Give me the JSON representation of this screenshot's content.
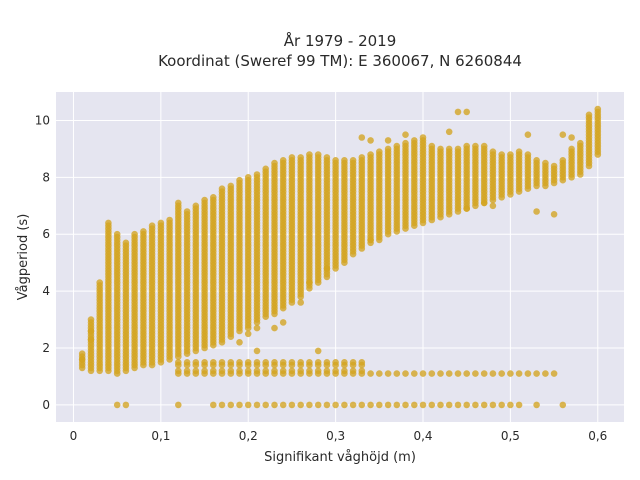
{
  "chart_data": {
    "type": "scatter",
    "title": "År 1979 - 2019",
    "subtitle": "Koordinat (Sweref 99 TM): E 360067, N 6260844",
    "xlabel": "Signifikant våghöjd (m)",
    "ylabel": "Vågperiod (s)",
    "xlim": [
      -0.02,
      0.63
    ],
    "ylim": [
      -0.6,
      11.0
    ],
    "x_ticks": [
      0,
      0.1,
      0.2,
      0.3,
      0.4,
      0.5,
      0.6
    ],
    "x_tick_labels": [
      "0",
      "0,1",
      "0,2",
      "0,3",
      "0,4",
      "0,5",
      "0,6"
    ],
    "y_ticks": [
      0,
      2,
      4,
      6,
      8,
      10
    ],
    "y_tick_labels": [
      "0",
      "2",
      "4",
      "6",
      "8",
      "10"
    ],
    "grid": true,
    "color": "#d4a420",
    "background": "#e5e5f0",
    "column_step": 0.01,
    "columns": [
      [
        0.01,
        1.3,
        1.8
      ],
      [
        0.02,
        1.2,
        3.0
      ],
      [
        0.03,
        1.2,
        4.3
      ],
      [
        0.04,
        1.2,
        6.4
      ],
      [
        0.05,
        1.1,
        6.0
      ],
      [
        0.06,
        1.2,
        5.7
      ],
      [
        0.07,
        1.3,
        6.0
      ],
      [
        0.08,
        1.4,
        6.1
      ],
      [
        0.09,
        1.4,
        6.3
      ],
      [
        0.1,
        1.5,
        6.4
      ],
      [
        0.11,
        1.6,
        6.5
      ],
      [
        0.12,
        1.7,
        7.1
      ],
      [
        0.13,
        1.8,
        6.8
      ],
      [
        0.14,
        1.9,
        7.0
      ],
      [
        0.15,
        2.0,
        7.2
      ],
      [
        0.16,
        2.1,
        7.3
      ],
      [
        0.17,
        2.2,
        7.6
      ],
      [
        0.18,
        2.4,
        7.7
      ],
      [
        0.19,
        2.6,
        7.9
      ],
      [
        0.2,
        2.7,
        8.0
      ],
      [
        0.21,
        2.9,
        8.1
      ],
      [
        0.22,
        3.1,
        8.3
      ],
      [
        0.23,
        3.2,
        8.5
      ],
      [
        0.24,
        3.4,
        8.6
      ],
      [
        0.25,
        3.6,
        8.7
      ],
      [
        0.26,
        3.8,
        8.7
      ],
      [
        0.27,
        4.1,
        8.8
      ],
      [
        0.28,
        4.3,
        8.8
      ],
      [
        0.29,
        4.5,
        8.7
      ],
      [
        0.3,
        4.8,
        8.6
      ],
      [
        0.31,
        5.0,
        8.6
      ],
      [
        0.32,
        5.3,
        8.6
      ],
      [
        0.33,
        5.5,
        8.7
      ],
      [
        0.34,
        5.7,
        8.8
      ],
      [
        0.35,
        5.8,
        8.9
      ],
      [
        0.36,
        6.0,
        9.0
      ],
      [
        0.37,
        6.1,
        9.1
      ],
      [
        0.38,
        6.2,
        9.2
      ],
      [
        0.39,
        6.3,
        9.3
      ],
      [
        0.4,
        6.4,
        9.3
      ],
      [
        0.41,
        6.5,
        9.1
      ],
      [
        0.42,
        6.6,
        9.0
      ],
      [
        0.43,
        6.7,
        9.0
      ],
      [
        0.44,
        6.8,
        9.0
      ],
      [
        0.45,
        6.9,
        9.1
      ],
      [
        0.46,
        7.0,
        9.1
      ],
      [
        0.47,
        7.1,
        9.1
      ],
      [
        0.48,
        7.2,
        8.9
      ],
      [
        0.49,
        7.3,
        8.8
      ],
      [
        0.5,
        7.4,
        8.8
      ],
      [
        0.51,
        7.5,
        8.9
      ],
      [
        0.52,
        7.6,
        8.8
      ],
      [
        0.53,
        7.7,
        8.6
      ],
      [
        0.54,
        7.7,
        8.5
      ],
      [
        0.55,
        7.8,
        8.4
      ],
      [
        0.56,
        7.9,
        8.6
      ],
      [
        0.57,
        8.0,
        9.0
      ],
      [
        0.58,
        8.1,
        9.2
      ],
      [
        0.59,
        8.4,
        10.2
      ],
      [
        0.6,
        8.8,
        10.4
      ]
    ],
    "bands": [
      {
        "y": 0.0,
        "x_from": 0.16,
        "x_to": 0.51
      },
      {
        "y": 1.1,
        "x_from": 0.12,
        "x_to": 0.54
      },
      {
        "y": 1.5,
        "x_from": 0.12,
        "x_to": 0.33
      }
    ],
    "band_rows_between": [
      1.1,
      1.5
    ],
    "outliers": [
      [
        0.05,
        0.0
      ],
      [
        0.06,
        0.0
      ],
      [
        0.12,
        0.0
      ],
      [
        0.53,
        0.0
      ],
      [
        0.56,
        0.0
      ],
      [
        0.28,
        1.9
      ],
      [
        0.21,
        1.9
      ],
      [
        0.55,
        1.1
      ],
      [
        0.01,
        1.6
      ],
      [
        0.02,
        2.6
      ],
      [
        0.02,
        2.3
      ],
      [
        0.44,
        10.3
      ],
      [
        0.45,
        10.3
      ],
      [
        0.43,
        9.6
      ],
      [
        0.4,
        9.4
      ],
      [
        0.38,
        9.5
      ],
      [
        0.33,
        9.4
      ],
      [
        0.34,
        9.3
      ],
      [
        0.36,
        9.3
      ],
      [
        0.52,
        9.5
      ],
      [
        0.56,
        9.5
      ],
      [
        0.57,
        9.4
      ],
      [
        0.55,
        6.7
      ],
      [
        0.53,
        6.8
      ],
      [
        0.48,
        7.0
      ],
      [
        0.47,
        7.1
      ],
      [
        0.45,
        6.9
      ],
      [
        0.34,
        5.8
      ],
      [
        0.29,
        4.8
      ],
      [
        0.27,
        4.3
      ],
      [
        0.26,
        3.6
      ],
      [
        0.24,
        2.9
      ],
      [
        0.23,
        2.7
      ],
      [
        0.21,
        2.7
      ],
      [
        0.2,
        2.5
      ],
      [
        0.19,
        2.2
      ]
    ]
  }
}
